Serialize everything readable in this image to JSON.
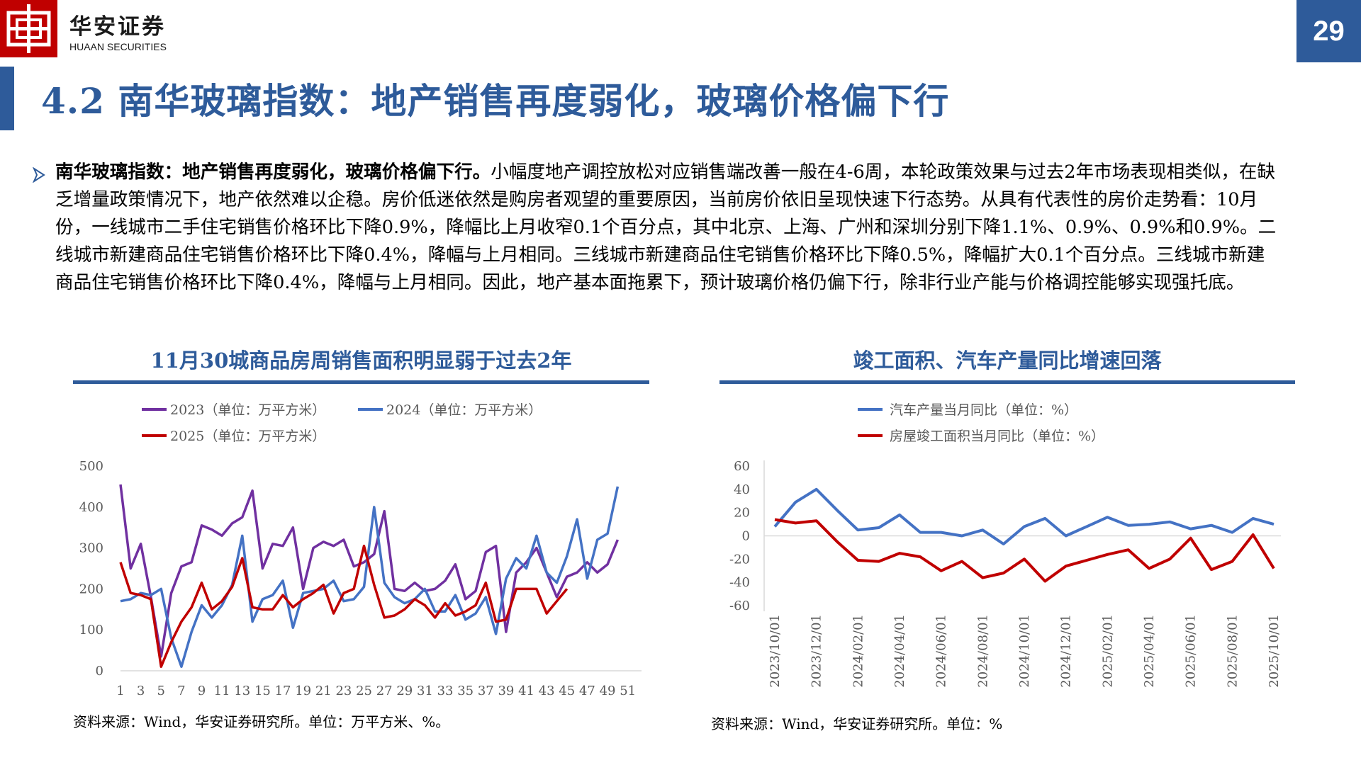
{
  "brand": {
    "name_cn": "华安证券",
    "name_en": "HUAAN SECURITIES"
  },
  "page_number": "29",
  "title": "4.2 南华玻璃指数：地产销售再度弱化，玻璃价格偏下行",
  "paragraph": {
    "lead": "南华玻璃指数：地产销售再度弱化，玻璃价格偏下行。",
    "body": "小幅度地产调控放松对应销售端改善一般在4-6周，本轮政策效果与过去2年市场表现相类似，在缺乏增量政策情况下，地产依然难以企稳。房价低迷依然是购房者观望的重要原因，当前房价依旧呈现快速下行态势。从具有代表性的房价走势看：10月份，一线城市二手住宅销售价格环比下降0.9%，降幅比上月收窄0.1个百分点，其中北京、上海、广州和深圳分别下降1.1%、0.9%、0.9%和0.9%。二线城市新建商品住宅销售价格环比下降0.4%，降幅与上月相同。三线城市新建商品住宅销售价格环比下降0.5%，降幅扩大0.1个百分点。三线城市新建商品住宅销售价格环比下降0.4%，降幅与上月相同。因此，地产基本面拖累下，预计玻璃价格仍偏下行，除非行业产能与价格调控能够实现强托底。"
  },
  "left_chart": {
    "title": "11月30城商品房周销售面积明显弱于过去2年",
    "source": "资料来源：Wind，华安证券研究所。单位：万平方米、%。"
  },
  "right_chart": {
    "title": "竣工面积、汽车产量同比增速回落",
    "source": "资料来源：Wind，华安证券研究所。单位：%"
  },
  "chart_data": [
    {
      "type": "line",
      "title": "11月30城商品房周销售面积明显弱于过去2年",
      "ylim": [
        0,
        500
      ],
      "yticks": [
        "0",
        "100",
        "200",
        "300",
        "400",
        "500"
      ],
      "xticks": [
        "1",
        "3",
        "5",
        "7",
        "9",
        "11",
        "13",
        "15",
        "17",
        "19",
        "21",
        "23",
        "25",
        "27",
        "29",
        "31",
        "33",
        "35",
        "37",
        "39",
        "41",
        "43",
        "45",
        "47",
        "49",
        "51"
      ],
      "x": [
        1,
        2,
        3,
        4,
        5,
        6,
        7,
        8,
        9,
        10,
        11,
        12,
        13,
        14,
        15,
        16,
        17,
        18,
        19,
        20,
        21,
        22,
        23,
        24,
        25,
        26,
        27,
        28,
        29,
        30,
        31,
        32,
        33,
        34,
        35,
        36,
        37,
        38,
        39,
        40,
        41,
        42,
        43,
        44,
        45,
        46,
        47,
        48,
        49,
        50,
        51,
        52
      ],
      "series": [
        {
          "name": "2023（单位：万平方米）",
          "color": "#7030a0",
          "values": [
            455,
            250,
            310,
            180,
            35,
            190,
            255,
            265,
            355,
            345,
            330,
            360,
            375,
            440,
            250,
            310,
            305,
            350,
            200,
            300,
            315,
            305,
            320,
            255,
            265,
            285,
            390,
            200,
            195,
            215,
            195,
            200,
            220,
            260,
            175,
            195,
            290,
            305,
            95,
            240,
            265,
            300,
            240,
            180,
            230,
            240,
            265,
            240,
            260,
            320,
            null,
            null
          ]
        },
        {
          "name": "2024（单位：万平方米）",
          "color": "#4472c4",
          "values": [
            170,
            175,
            190,
            185,
            200,
            80,
            10,
            95,
            160,
            130,
            160,
            210,
            330,
            120,
            175,
            185,
            220,
            105,
            190,
            195,
            200,
            220,
            170,
            175,
            205,
            400,
            215,
            180,
            165,
            175,
            200,
            145,
            145,
            185,
            125,
            140,
            180,
            90,
            225,
            275,
            250,
            330,
            240,
            215,
            280,
            370,
            225,
            320,
            335,
            450,
            null,
            null
          ]
        },
        {
          "name": "2025（单位：万平方米）",
          "color": "#c00000",
          "values": [
            265,
            190,
            185,
            175,
            10,
            70,
            120,
            155,
            215,
            150,
            170,
            205,
            275,
            155,
            150,
            150,
            185,
            155,
            175,
            190,
            210,
            140,
            190,
            200,
            305,
            210,
            130,
            135,
            150,
            175,
            160,
            130,
            165,
            135,
            145,
            160,
            215,
            120,
            125,
            200,
            200,
            200,
            140,
            170,
            200,
            null,
            null,
            null,
            null,
            null,
            null,
            null
          ]
        }
      ]
    },
    {
      "type": "line",
      "title": "竣工面积、汽车产量同比增速回落",
      "ylim": [
        -60,
        60
      ],
      "yticks": [
        "-60",
        "-40",
        "-20",
        "0",
        "20",
        "40",
        "60"
      ],
      "x": [
        "2023/10/01",
        "2023/11/01",
        "2023/12/01",
        "2024/01/01",
        "2024/02/01",
        "2024/03/01",
        "2024/04/01",
        "2024/05/01",
        "2024/06/01",
        "2024/07/01",
        "2024/08/01",
        "2024/09/01",
        "2024/10/01",
        "2024/11/01",
        "2024/12/01",
        "2025/01/01",
        "2025/02/01",
        "2025/03/01",
        "2025/04/01",
        "2025/05/01",
        "2025/06/01",
        "2025/07/01",
        "2025/08/01",
        "2025/09/01",
        "2025/10/01"
      ],
      "xticks": [
        "2023/10/01",
        "2023/12/01",
        "2024/02/01",
        "2024/04/01",
        "2024/06/01",
        "2024/08/01",
        "2024/10/01",
        "2024/12/01",
        "2025/02/01",
        "2025/04/01",
        "2025/06/01",
        "2025/08/01",
        "2025/10/01"
      ],
      "series": [
        {
          "name": "汽车产量当月同比（单位：%）",
          "color": "#4472c4",
          "values": [
            8,
            29,
            40,
            22,
            5,
            7,
            18,
            3,
            3,
            0,
            5,
            -7,
            8,
            15,
            0,
            8,
            16,
            9,
            10,
            12,
            6,
            9,
            3,
            15,
            10
          ]
        },
        {
          "name": "房屋竣工面积当月同比（单位：%）",
          "color": "#c00000",
          "values": [
            14,
            11,
            13,
            -5,
            -21,
            -22,
            -15,
            -18,
            -30,
            -22,
            -36,
            -32,
            -20,
            -39,
            -26,
            -21,
            -16,
            -12,
            -28,
            -20,
            -2,
            -29,
            -22,
            1,
            -28
          ]
        }
      ]
    }
  ]
}
